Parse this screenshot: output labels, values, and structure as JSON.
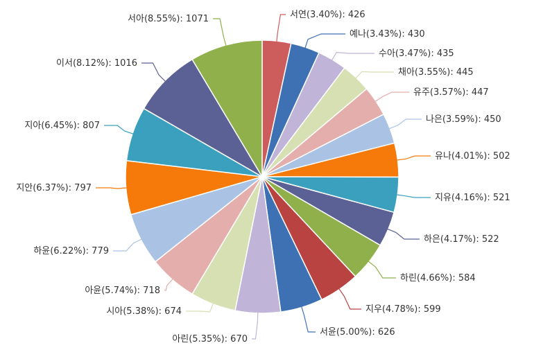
{
  "chart_data": {
    "type": "pie",
    "title": "",
    "start_angle_deg": 0,
    "direction": "clockwise",
    "slices": [
      {
        "name": "서연",
        "pct": "3.40%",
        "value": 426,
        "color": "#cd5c5c",
        "label": "서연(3.40%): 426"
      },
      {
        "name": "예나",
        "pct": "3.43%",
        "value": 430,
        "color": "#3e71b3",
        "label": "예나(3.43%): 430"
      },
      {
        "name": "수아",
        "pct": "3.47%",
        "value": 435,
        "color": "#c0b4d8",
        "label": "수아(3.47%): 435"
      },
      {
        "name": "채아",
        "pct": "3.55%",
        "value": 445,
        "color": "#d6e0b2",
        "label": "채아(3.55%): 445"
      },
      {
        "name": "유주",
        "pct": "3.57%",
        "value": 447,
        "color": "#e3aeab",
        "label": "유주(3.57%): 447"
      },
      {
        "name": "나은",
        "pct": "3.59%",
        "value": 450,
        "color": "#aac2e3",
        "label": "나은(3.59%): 450"
      },
      {
        "name": "유나",
        "pct": "4.01%",
        "value": 502,
        "color": "#f57a0a",
        "label": "유나(4.01%): 502"
      },
      {
        "name": "지유",
        "pct": "4.16%",
        "value": 521,
        "color": "#3aa0be",
        "label": "지유(4.16%): 521"
      },
      {
        "name": "하은",
        "pct": "4.17%",
        "value": 522,
        "color": "#5b6194",
        "label": "하은(4.17%): 522"
      },
      {
        "name": "하린",
        "pct": "4.66%",
        "value": 584,
        "color": "#8fb04b",
        "label": "하린(4.66%): 584"
      },
      {
        "name": "지우",
        "pct": "4.78%",
        "value": 599,
        "color": "#b94340",
        "label": "지우(4.78%): 599"
      },
      {
        "name": "서윤",
        "pct": "5.00%",
        "value": 626,
        "color": "#3e71b3",
        "label": "서윤(5.00%): 626"
      },
      {
        "name": "아린",
        "pct": "5.35%",
        "value": 670,
        "color": "#c0b4d8",
        "label": "아린(5.35%): 670"
      },
      {
        "name": "시아",
        "pct": "5.38%",
        "value": 674,
        "color": "#d6e0b2",
        "label": "시아(5.38%): 674"
      },
      {
        "name": "아윤",
        "pct": "5.74%",
        "value": 718,
        "color": "#e3aeab",
        "label": "아윤(5.74%): 718"
      },
      {
        "name": "하윤",
        "pct": "6.22%",
        "value": 779,
        "color": "#aac2e3",
        "label": "하윤(6.22%): 779"
      },
      {
        "name": "지안",
        "pct": "6.37%",
        "value": 797,
        "color": "#f57a0a",
        "label": "지안(6.37%): 797"
      },
      {
        "name": "지아",
        "pct": "6.45%",
        "value": 807,
        "color": "#3aa0be",
        "label": "지아(6.45%): 807"
      },
      {
        "name": "이서",
        "pct": "8.12%",
        "value": 1016,
        "color": "#5b6194",
        "label": "이서(8.12%): 1016"
      },
      {
        "name": "서아",
        "pct": "8.55%",
        "value": 1071,
        "color": "#8fb04b",
        "label": "서아(8.55%): 1071"
      }
    ]
  }
}
